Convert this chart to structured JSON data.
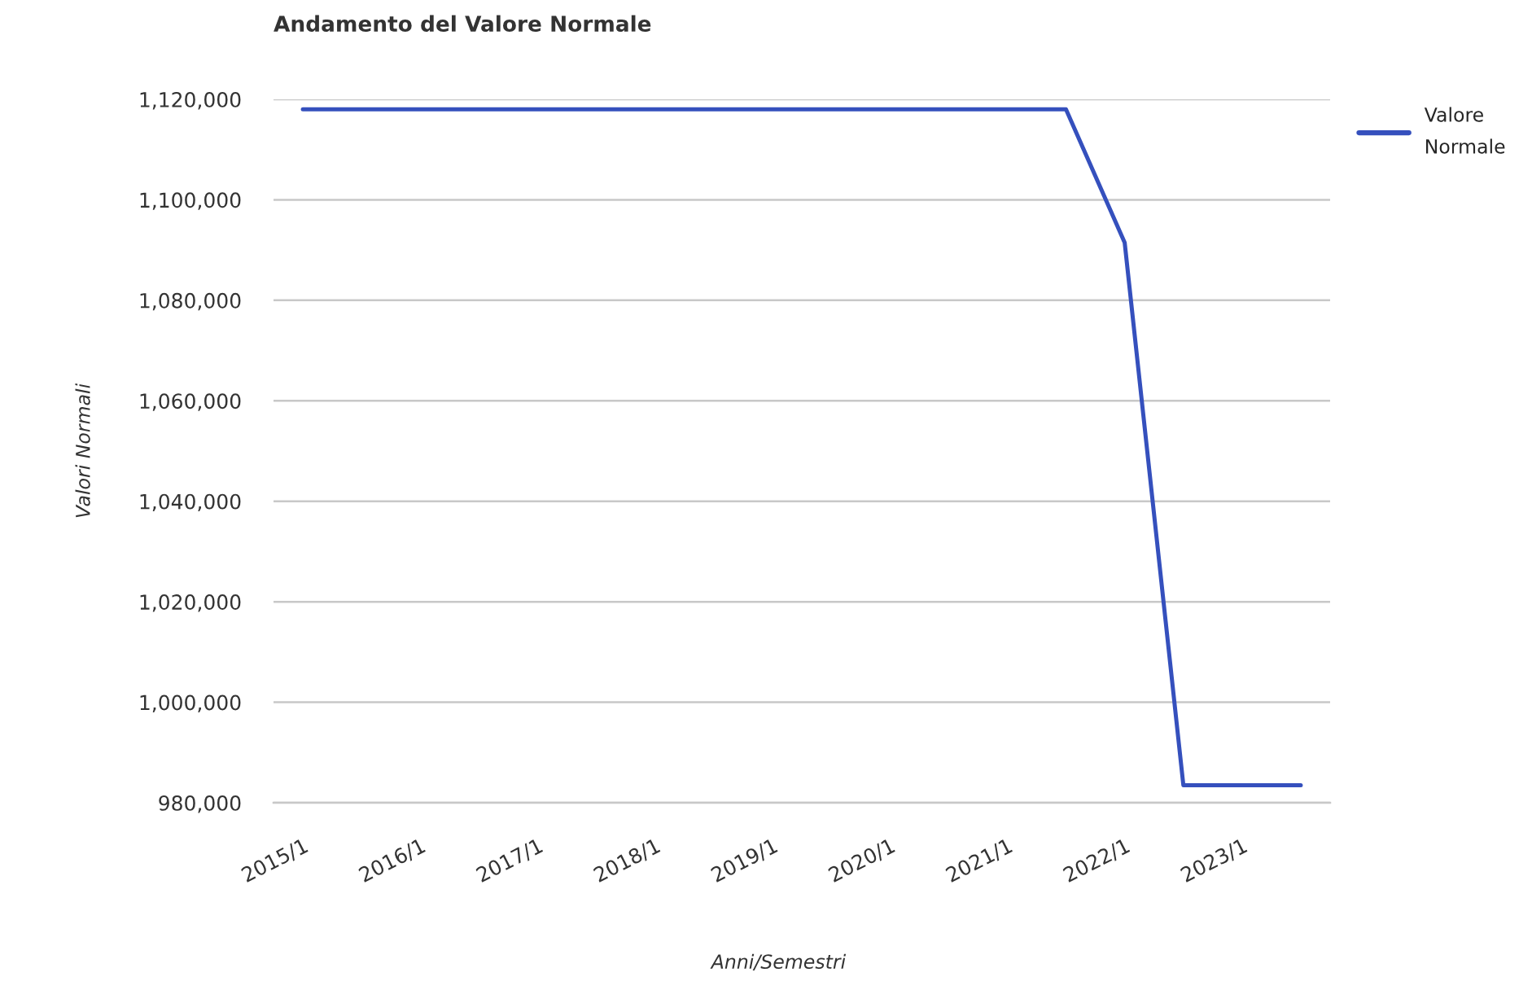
{
  "chart_data": {
    "type": "line",
    "title": "Andamento del Valore Normale",
    "xlabel": "Anni/Semestri",
    "ylabel": "Valori Normali",
    "categories": [
      "2015/1",
      null,
      "2016/1",
      null,
      "2017/1",
      null,
      "2018/1",
      null,
      "2019/1",
      null,
      "2020/1",
      null,
      "2021/1",
      null,
      "2022/1",
      null,
      "2023/1",
      null
    ],
    "series": [
      {
        "name": "Valore Normale",
        "color": "#3550bd",
        "values": [
          1118000,
          1118000,
          1118000,
          1118000,
          1118000,
          1118000,
          1118000,
          1118000,
          1118000,
          1118000,
          1118000,
          1118000,
          1118000,
          1118000,
          1091500,
          983500,
          983500,
          983500
        ]
      }
    ],
    "ylim": [
      980000,
      1120000
    ],
    "yticks": [
      {
        "value": 980000,
        "label": "980,000"
      },
      {
        "value": 1000000,
        "label": "1,000,000"
      },
      {
        "value": 1020000,
        "label": "1,020,000"
      },
      {
        "value": 1040000,
        "label": "1,040,000"
      },
      {
        "value": 1060000,
        "label": "1,060,000"
      },
      {
        "value": 1080000,
        "label": "1,080,000"
      },
      {
        "value": 1100000,
        "label": "1,100,000"
      },
      {
        "value": 1120000,
        "label": "1,120,000"
      }
    ],
    "grid": "y",
    "legend": "top right",
    "line_style": "solid"
  }
}
